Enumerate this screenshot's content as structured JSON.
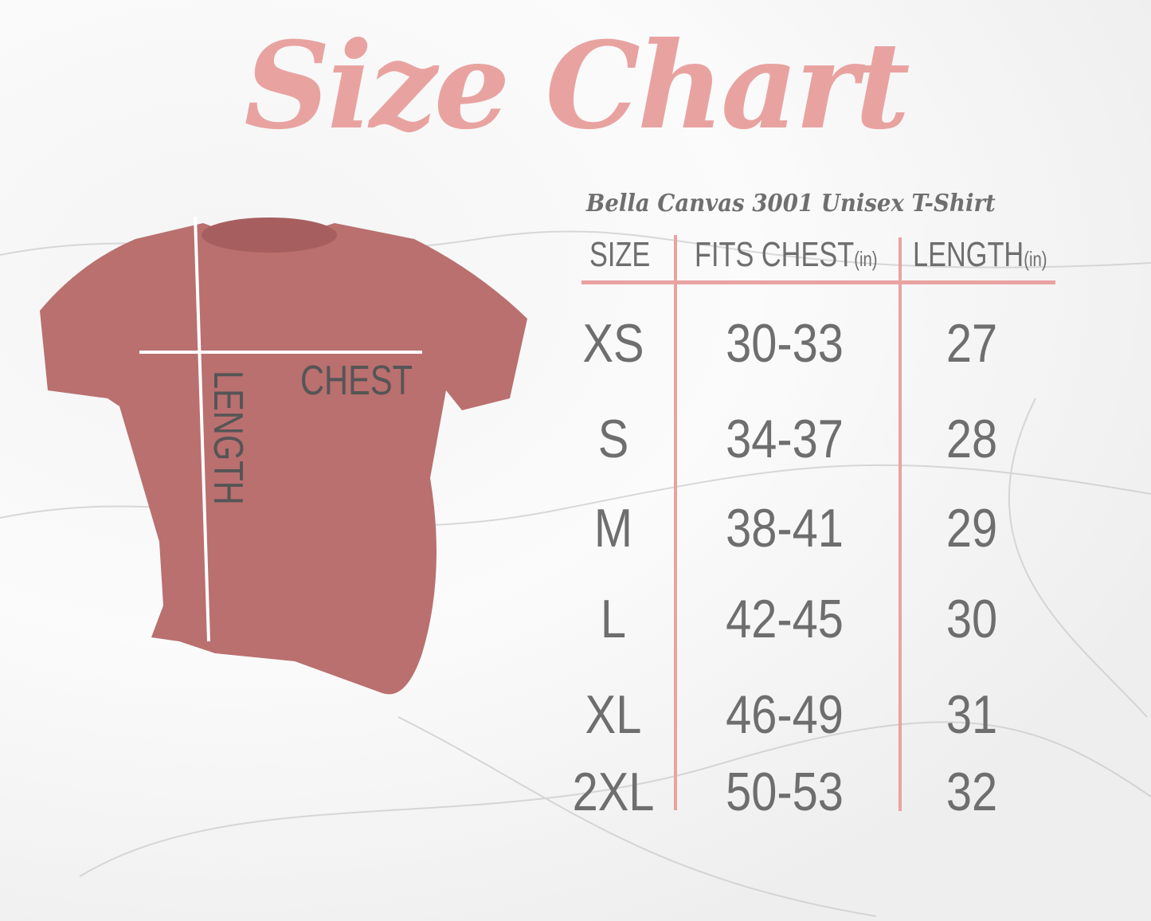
{
  "title": "Size Chart",
  "subtitle": "Bella Canvas 3001 Unisex T-Shirt",
  "headers": {
    "size": "SIZE",
    "chest": "FITS CHEST",
    "length": "LENGTH",
    "unit": "(in)"
  },
  "rows": [
    {
      "size": "XS",
      "chest": "30-33",
      "length": "27"
    },
    {
      "size": "S",
      "chest": "34-37",
      "length": "28"
    },
    {
      "size": "M",
      "chest": "38-41",
      "length": "29"
    },
    {
      "size": "L",
      "chest": "42-45",
      "length": "30"
    },
    {
      "size": "XL",
      "chest": "46-49",
      "length": "31"
    },
    {
      "size": "2XL",
      "chest": "50-53",
      "length": "32"
    }
  ],
  "shirt": {
    "chest_label": "CHEST",
    "length_label": "LENGTH",
    "color": "#b9706f"
  },
  "colors": {
    "accent": "#e8a3a1",
    "text": "#6e6e6e"
  }
}
